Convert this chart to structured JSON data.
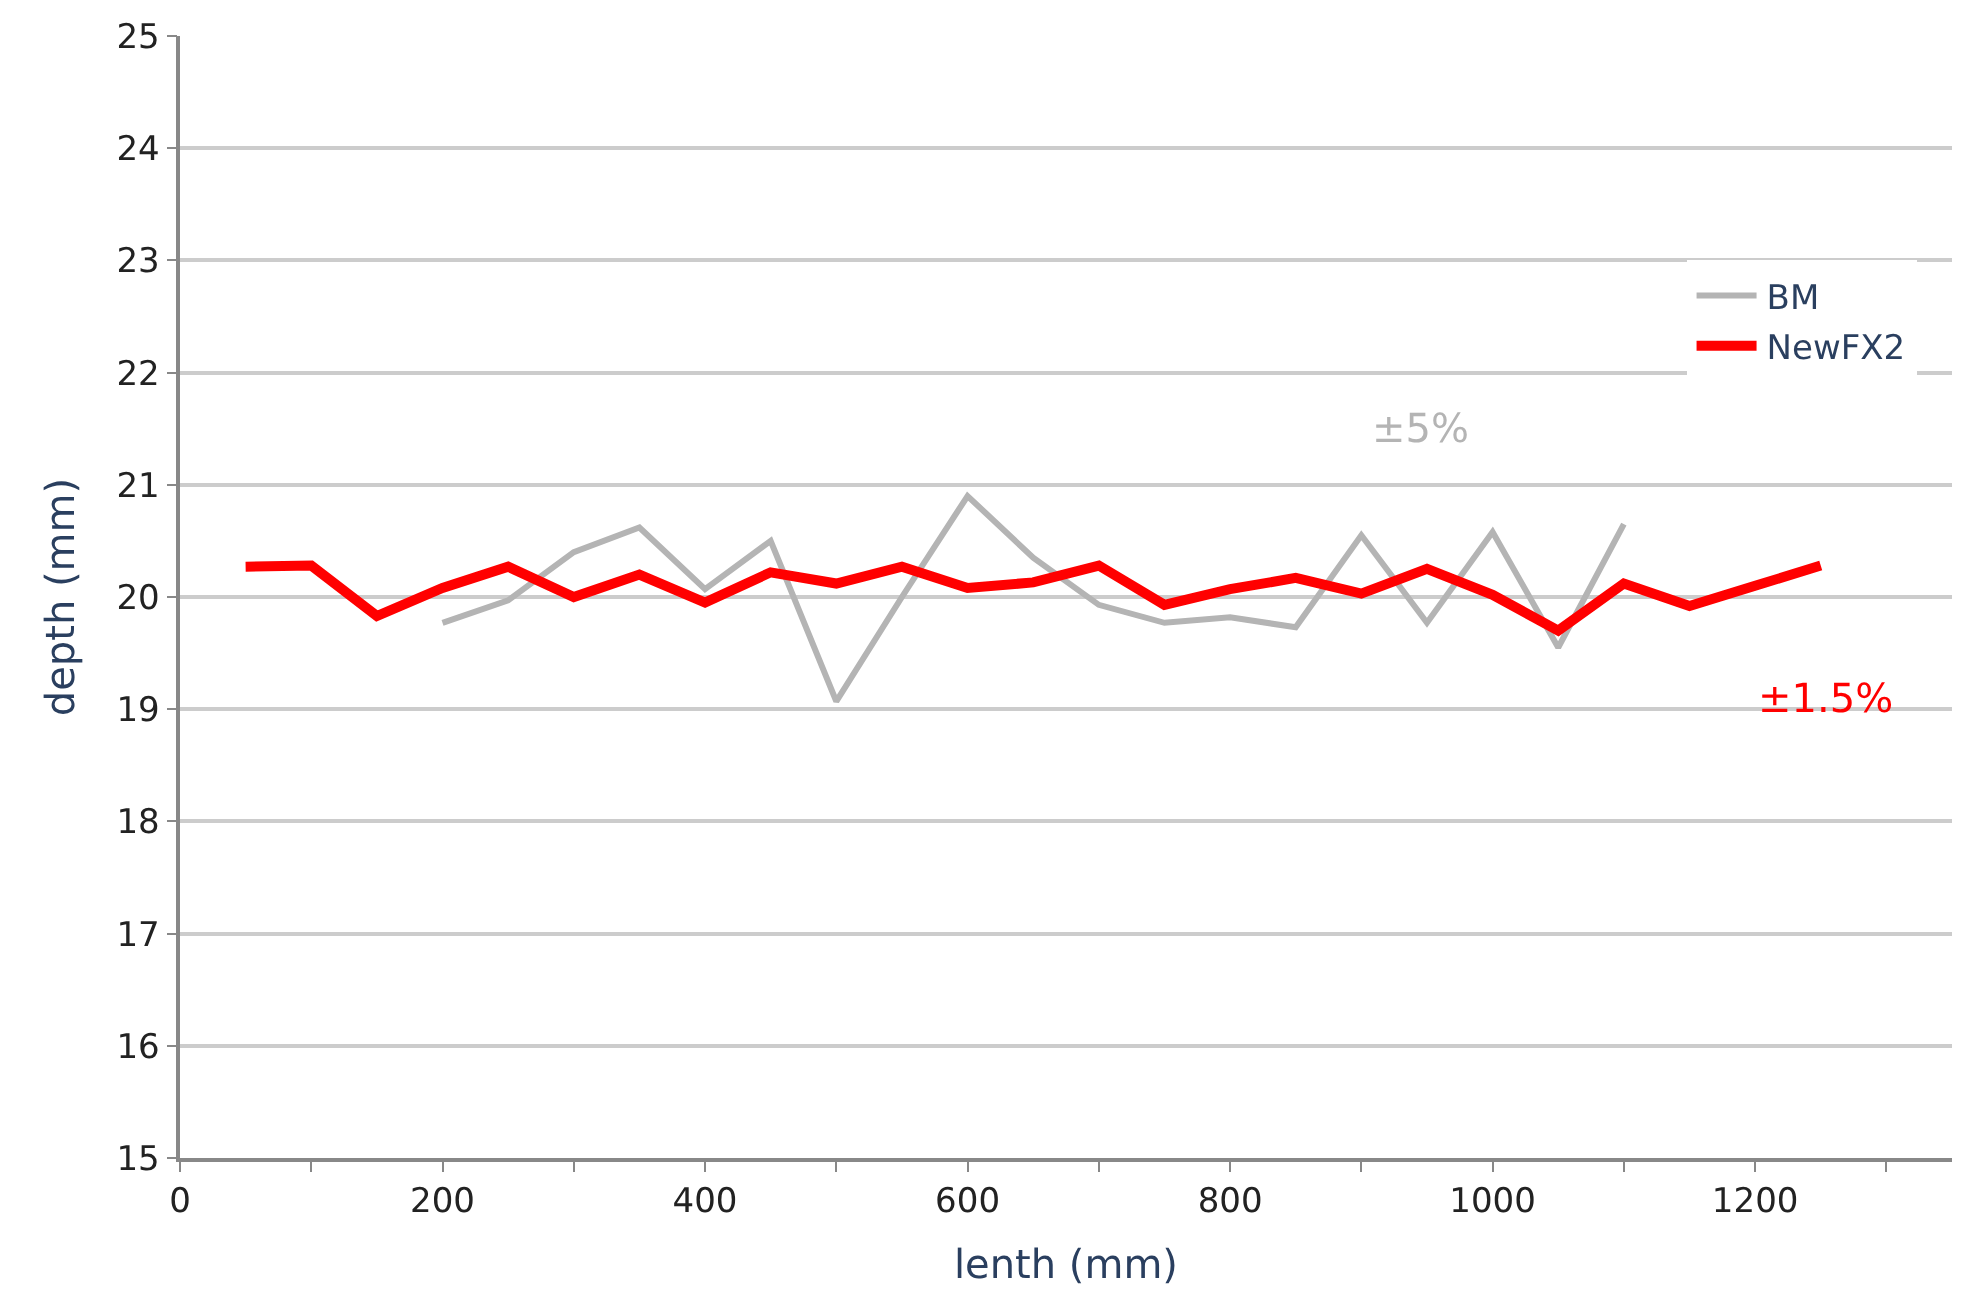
{
  "chart_data": {
    "type": "line",
    "xlabel": "lenth (mm)",
    "ylabel": "depth (mm)",
    "xlim": [
      0,
      1350
    ],
    "xticks": [
      0,
      {
        "value": 100,
        "label": null
      },
      200,
      {
        "value": 300,
        "label": null
      },
      400,
      {
        "value": 500,
        "label": null
      },
      600,
      {
        "value": 700,
        "label": null
      },
      800,
      {
        "value": 900,
        "label": null
      },
      1000,
      {
        "value": 1100,
        "label": null
      },
      1200,
      {
        "value": 1300,
        "label": null
      }
    ],
    "ylim": [
      15,
      25
    ],
    "yticks": [
      15,
      16,
      17,
      18,
      19,
      20,
      21,
      22,
      23,
      24,
      25
    ],
    "grid": "y",
    "legend": "top right",
    "marker": "none",
    "line_style": "solid",
    "series": [
      {
        "name": "BM",
        "color": "#b4b4b4",
        "x": [
          200,
          250,
          300,
          350,
          400,
          450,
          500,
          550,
          600,
          650,
          700,
          750,
          800,
          850,
          900,
          950,
          1000,
          1050,
          1100
        ],
        "values": [
          19.77,
          19.97,
          20.4,
          20.62,
          20.07,
          20.5,
          19.07,
          20.0,
          20.9,
          20.35,
          19.93,
          19.77,
          19.82,
          19.73,
          20.55,
          19.77,
          20.58,
          19.55,
          20.65
        ]
      },
      {
        "name": "NewFX2",
        "color": "#ff0000",
        "x": [
          50,
          100,
          150,
          200,
          250,
          300,
          350,
          400,
          450,
          500,
          550,
          600,
          650,
          700,
          750,
          800,
          850,
          900,
          950,
          1000,
          1050,
          1100,
          1150,
          1200,
          1250
        ],
        "values": [
          20.27,
          20.28,
          19.83,
          20.08,
          20.27,
          20.0,
          20.2,
          19.95,
          20.22,
          20.12,
          20.27,
          20.08,
          20.13,
          20.28,
          19.93,
          20.07,
          20.17,
          20.03,
          20.25,
          20.02,
          19.7,
          20.12,
          19.92,
          20.1,
          20.28
        ]
      }
    ],
    "annotations": [
      "±5%",
      "±1.5%"
    ]
  }
}
